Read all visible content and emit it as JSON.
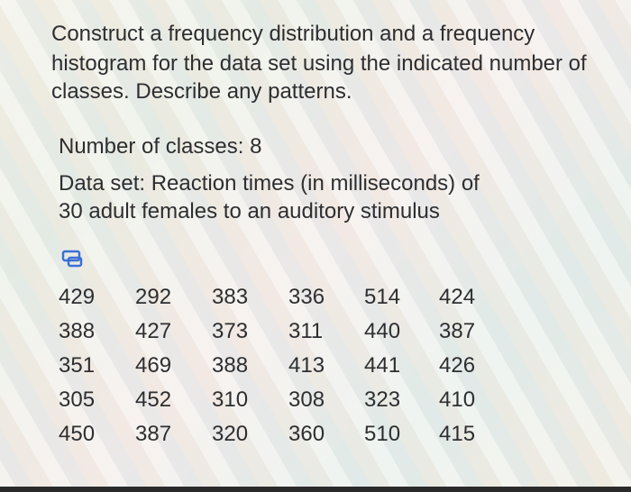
{
  "question": {
    "lines": [
      "Construct a frequency distribution and a frequency",
      "histogram for the data set using the indicated number of",
      "classes. Describe any patterns."
    ]
  },
  "number_of_classes": {
    "label": "Number of classes:",
    "value": 8
  },
  "data_set": {
    "lines": [
      "Data set: Reaction times (in milliseconds) of",
      "30 adult females to an auditory stimulus"
    ]
  },
  "table": {
    "rows": [
      [
        429,
        292,
        383,
        336,
        514,
        424
      ],
      [
        388,
        427,
        373,
        311,
        440,
        387
      ],
      [
        351,
        469,
        388,
        413,
        441,
        426
      ],
      [
        305,
        452,
        310,
        308,
        323,
        410
      ],
      [
        450,
        387,
        320,
        360,
        510,
        415
      ]
    ]
  }
}
